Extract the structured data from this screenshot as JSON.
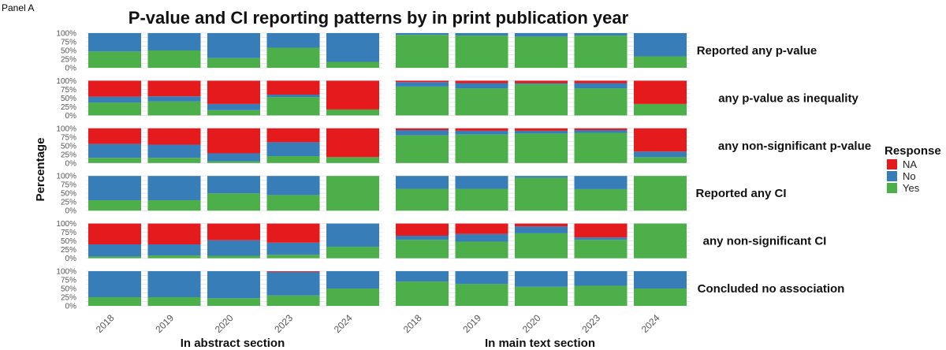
{
  "panel_label": "Panel A",
  "chart_data": {
    "type": "bar",
    "stacked": true,
    "title": "P-value and CI reporting patterns by in print publication year",
    "ylabel": "Percentage",
    "ylim": [
      0,
      100
    ],
    "yticks": [
      "0%",
      "25%",
      "50%",
      "75%",
      "100%"
    ],
    "categories": [
      "2018",
      "2019",
      "2020",
      "2023",
      "2024"
    ],
    "sections": [
      "In abstract section",
      "In main text section"
    ],
    "legend": {
      "title": "Response",
      "position": "right",
      "items": [
        {
          "name": "NA",
          "color": "#e41a1c"
        },
        {
          "name": "No",
          "color": "#377eb8"
        },
        {
          "name": "Yes",
          "color": "#4daf4a"
        }
      ]
    },
    "rows": [
      {
        "label": "Reported any p-value",
        "abstract": [
          {
            "Yes": 47,
            "No": 53,
            "NA": 0
          },
          {
            "Yes": 50,
            "No": 50,
            "NA": 0
          },
          {
            "Yes": 28,
            "No": 72,
            "NA": 0
          },
          {
            "Yes": 58,
            "No": 42,
            "NA": 0
          },
          {
            "Yes": 17,
            "No": 83,
            "NA": 0
          }
        ],
        "main": [
          {
            "Yes": 95,
            "No": 5,
            "NA": 0
          },
          {
            "Yes": 93,
            "No": 7,
            "NA": 0
          },
          {
            "Yes": 90,
            "No": 10,
            "NA": 0
          },
          {
            "Yes": 93,
            "No": 7,
            "NA": 0
          },
          {
            "Yes": 33,
            "No": 67,
            "NA": 0
          }
        ]
      },
      {
        "label": "any p-value as inequality",
        "abstract": [
          {
            "Yes": 37,
            "No": 17,
            "NA": 46
          },
          {
            "Yes": 40,
            "No": 15,
            "NA": 45
          },
          {
            "Yes": 15,
            "No": 18,
            "NA": 67
          },
          {
            "Yes": 53,
            "No": 7,
            "NA": 40
          },
          {
            "Yes": 17,
            "No": 0,
            "NA": 83
          }
        ],
        "main": [
          {
            "Yes": 83,
            "No": 13,
            "NA": 4
          },
          {
            "Yes": 78,
            "No": 15,
            "NA": 7
          },
          {
            "Yes": 90,
            "No": 3,
            "NA": 7
          },
          {
            "Yes": 78,
            "No": 15,
            "NA": 7
          },
          {
            "Yes": 33,
            "No": 0,
            "NA": 67
          }
        ]
      },
      {
        "label": "any non-significant p-value",
        "abstract": [
          {
            "Yes": 15,
            "No": 40,
            "NA": 45
          },
          {
            "Yes": 15,
            "No": 38,
            "NA": 47
          },
          {
            "Yes": 5,
            "No": 23,
            "NA": 72
          },
          {
            "Yes": 20,
            "No": 40,
            "NA": 40
          },
          {
            "Yes": 17,
            "No": 0,
            "NA": 83
          }
        ],
        "main": [
          {
            "Yes": 80,
            "No": 15,
            "NA": 5
          },
          {
            "Yes": 82,
            "No": 11,
            "NA": 7
          },
          {
            "Yes": 85,
            "No": 8,
            "NA": 7
          },
          {
            "Yes": 87,
            "No": 8,
            "NA": 5
          },
          {
            "Yes": 17,
            "No": 16,
            "NA": 67
          }
        ]
      },
      {
        "label": "Reported any CI",
        "abstract": [
          {
            "Yes": 30,
            "No": 70,
            "NA": 0
          },
          {
            "Yes": 30,
            "No": 70,
            "NA": 0
          },
          {
            "Yes": 50,
            "No": 50,
            "NA": 0
          },
          {
            "Yes": 45,
            "No": 55,
            "NA": 0
          },
          {
            "Yes": 100,
            "No": 0,
            "NA": 0
          }
        ],
        "main": [
          {
            "Yes": 63,
            "No": 37,
            "NA": 0
          },
          {
            "Yes": 63,
            "No": 37,
            "NA": 0
          },
          {
            "Yes": 95,
            "No": 5,
            "NA": 0
          },
          {
            "Yes": 62,
            "No": 38,
            "NA": 0
          },
          {
            "Yes": 100,
            "No": 0,
            "NA": 0
          }
        ]
      },
      {
        "label": "any non-significant CI",
        "abstract": [
          {
            "Yes": 5,
            "No": 35,
            "NA": 60
          },
          {
            "Yes": 8,
            "No": 32,
            "NA": 60
          },
          {
            "Yes": 7,
            "No": 45,
            "NA": 48
          },
          {
            "Yes": 10,
            "No": 35,
            "NA": 55
          },
          {
            "Yes": 33,
            "No": 67,
            "NA": 0
          }
        ],
        "main": [
          {
            "Yes": 53,
            "No": 12,
            "NA": 35
          },
          {
            "Yes": 48,
            "No": 22,
            "NA": 30
          },
          {
            "Yes": 72,
            "No": 20,
            "NA": 8
          },
          {
            "Yes": 53,
            "No": 7,
            "NA": 40
          },
          {
            "Yes": 100,
            "No": 0,
            "NA": 0
          }
        ]
      },
      {
        "label": "Concluded no association",
        "abstract": [
          {
            "Yes": 25,
            "No": 75,
            "NA": 0
          },
          {
            "Yes": 25,
            "No": 75,
            "NA": 0
          },
          {
            "Yes": 22,
            "No": 78,
            "NA": 0
          },
          {
            "Yes": 30,
            "No": 68,
            "NA": 2
          },
          {
            "Yes": 50,
            "No": 50,
            "NA": 0
          }
        ],
        "main": [
          {
            "Yes": 70,
            "No": 30,
            "NA": 0
          },
          {
            "Yes": 63,
            "No": 37,
            "NA": 0
          },
          {
            "Yes": 55,
            "No": 45,
            "NA": 0
          },
          {
            "Yes": 58,
            "No": 42,
            "NA": 0
          },
          {
            "Yes": 50,
            "No": 50,
            "NA": 0
          }
        ]
      }
    ]
  }
}
